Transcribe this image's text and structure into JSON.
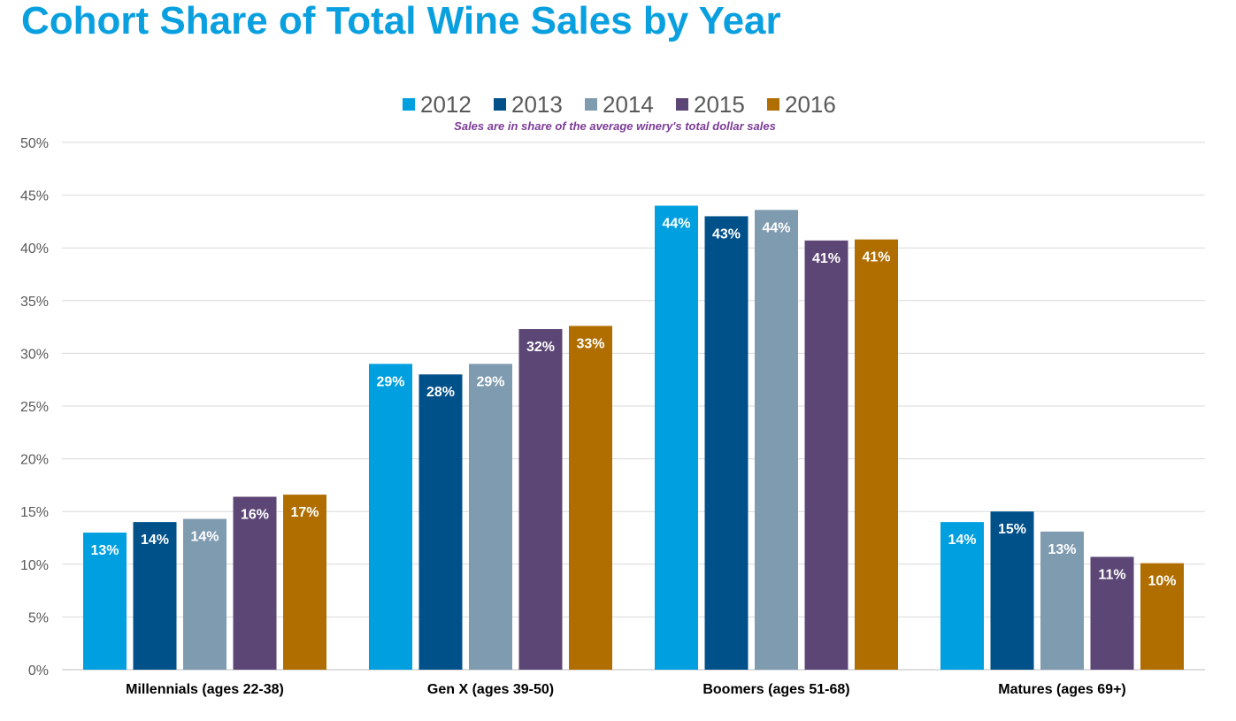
{
  "chart_data": {
    "type": "bar",
    "title": "Cohort Share of Total Wine Sales by Year",
    "subtitle": "Sales are in share of the average winery's total dollar sales",
    "categories": [
      "Millennials (ages 22-38)",
      "Gen X (ages 39-50)",
      "Boomers (ages 51-68)",
      "Matures (ages 69+)"
    ],
    "series": [
      {
        "name": "2012",
        "color": "#00a0e0",
        "values": [
          13,
          29,
          44,
          14
        ],
        "labels": [
          "13%",
          "29%",
          "44%",
          "14%"
        ]
      },
      {
        "name": "2013",
        "color": "#00508a",
        "values": [
          14,
          28,
          43,
          15
        ],
        "labels": [
          "14%",
          "28%",
          "43%",
          "15%"
        ]
      },
      {
        "name": "2014",
        "color": "#7f9bb0",
        "values": [
          14.3,
          29,
          43.6,
          13.1
        ],
        "labels": [
          "14%",
          "29%",
          "44%",
          "13%"
        ]
      },
      {
        "name": "2015",
        "color": "#5c4676",
        "values": [
          16.4,
          32.3,
          40.7,
          10.7
        ],
        "labels": [
          "16%",
          "32%",
          "41%",
          "11%"
        ]
      },
      {
        "name": "2016",
        "color": "#b06e00",
        "values": [
          16.6,
          32.6,
          40.8,
          10.1
        ],
        "labels": [
          "17%",
          "33%",
          "41%",
          "10%"
        ]
      }
    ],
    "ylim": [
      0,
      50
    ],
    "yticks": [
      0,
      5,
      10,
      15,
      20,
      25,
      30,
      35,
      40,
      45,
      50
    ],
    "ytick_labels": [
      "0%",
      "5%",
      "10%",
      "15%",
      "20%",
      "25%",
      "30%",
      "35%",
      "40%",
      "45%",
      "50%"
    ],
    "grid": true,
    "legend_position": "top-center",
    "xlabel": "",
    "ylabel": ""
  }
}
